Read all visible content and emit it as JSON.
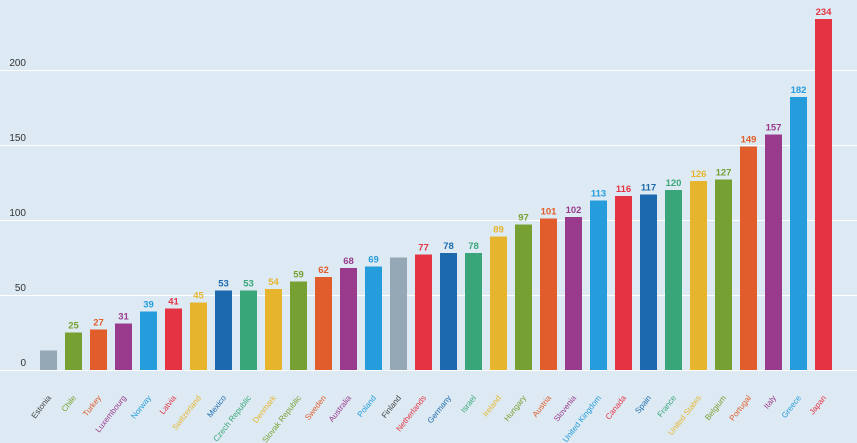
{
  "chart_data": {
    "type": "bar",
    "categories": [
      "Estonia",
      "Chile",
      "Turkey",
      "Luxembourg",
      "Norway",
      "Latvia",
      "Switzerland",
      "Mexico",
      "Czech Republic",
      "Denmark",
      "Slovak Republic",
      "Sweden",
      "Australia",
      "Poland",
      "Finland",
      "Netherlands",
      "Germany",
      "Israel",
      "Ireland",
      "Hungary",
      "Austria",
      "Slovenia",
      "United Kingdom",
      "Canada",
      "Spain",
      "France",
      "United States",
      "Belgium",
      "Portugal",
      "Italy",
      "Greece",
      "Japan"
    ],
    "values": [
      13,
      25,
      27,
      31,
      39,
      41,
      45,
      53,
      53,
      54,
      59,
      62,
      68,
      69,
      75,
      77,
      78,
      78,
      89,
      97,
      101,
      102,
      113,
      116,
      117,
      120,
      126,
      127,
      149,
      157,
      182,
      234
    ],
    "value_labels": [
      "",
      "25",
      "27",
      "31",
      "39",
      "41",
      "45",
      "53",
      "53",
      "54",
      "59",
      "62",
      "68",
      "69",
      "",
      "77",
      "78",
      "78",
      "89",
      "97",
      "101",
      "102",
      "113",
      "116",
      "117",
      "120",
      "126",
      "127",
      "149",
      "157",
      "182",
      "234"
    ],
    "colors": [
      "#94a8b6",
      "#77a032",
      "#e15d2b",
      "#993a8c",
      "#259cdc",
      "#e43342",
      "#e7b52d",
      "#1c6aad",
      "#38a679",
      "#e7b52d",
      "#77a032",
      "#e15d2b",
      "#993a8c",
      "#259cdc",
      "#94a8b6",
      "#e43342",
      "#1c6aad",
      "#38a679",
      "#e7b52d",
      "#77a032",
      "#e15d2b",
      "#993a8c",
      "#259cdc",
      "#e43342",
      "#1c6aad",
      "#38a679",
      "#e7b52d",
      "#77a032",
      "#e15d2b",
      "#993a8c",
      "#259cdc",
      "#e43342"
    ],
    "yticks": [
      "0",
      "50",
      "100",
      "150",
      "200"
    ],
    "ylim": [
      0,
      234
    ],
    "grid": true,
    "title": "",
    "xlabel": "",
    "ylabel": ""
  }
}
